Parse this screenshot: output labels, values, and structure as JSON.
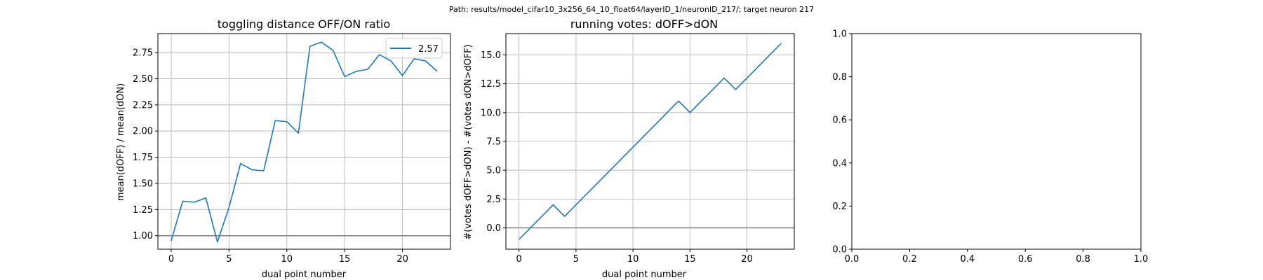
{
  "suptitle": "Path: results/model_cifar10_3x256_64_10_float64/layerID_1/neuronID_217/; target neuron 217",
  "chart_data": [
    {
      "type": "line",
      "title": "toggling distance OFF/ON ratio",
      "xlabel": "dual point number",
      "ylabel": "mean(dOFF) / mean(dON)",
      "xlim": [
        -1.15,
        24.15
      ],
      "ylim": [
        0.871,
        2.931
      ],
      "xticks": [
        0,
        5,
        10,
        15,
        20
      ],
      "yticks": [
        1.0,
        1.25,
        1.5,
        1.75,
        2.0,
        2.25,
        2.5,
        2.75
      ],
      "ytick_labels": [
        "1.00",
        "1.25",
        "1.50",
        "1.75",
        "2.00",
        "2.25",
        "2.50",
        "2.75"
      ],
      "grid": true,
      "hline": 1.0,
      "legend_position": "top-right",
      "series": [
        {
          "name": "2.57",
          "color": "#1f77b4",
          "x": [
            0,
            1,
            2,
            3,
            4,
            5,
            6,
            7,
            8,
            9,
            10,
            11,
            12,
            13,
            14,
            15,
            16,
            17,
            18,
            19,
            20,
            21,
            22,
            23
          ],
          "y": [
            0.95,
            1.33,
            1.32,
            1.36,
            0.94,
            1.27,
            1.69,
            1.63,
            1.62,
            2.1,
            2.09,
            1.98,
            2.81,
            2.85,
            2.77,
            2.52,
            2.57,
            2.59,
            2.73,
            2.67,
            2.53,
            2.69,
            2.67,
            2.57
          ]
        }
      ]
    },
    {
      "type": "line",
      "title": "running votes: dOFF>dON",
      "xlabel": "dual point number",
      "ylabel": "#(votes dOFF>dON) - #(votes dON>dOFF)",
      "xlim": [
        -1.15,
        24.15
      ],
      "ylim": [
        -1.85,
        16.85
      ],
      "xticks": [
        0,
        5,
        10,
        15,
        20
      ],
      "yticks": [
        0.0,
        2.5,
        5.0,
        7.5,
        10.0,
        12.5,
        15.0
      ],
      "ytick_labels": [
        "0.0",
        "2.5",
        "5.0",
        "7.5",
        "10.0",
        "12.5",
        "15.0"
      ],
      "grid": true,
      "hline": 0.0,
      "series": [
        {
          "color": "#1f77b4",
          "x": [
            0,
            1,
            2,
            3,
            4,
            5,
            6,
            7,
            8,
            9,
            10,
            11,
            12,
            13,
            14,
            15,
            16,
            17,
            18,
            19,
            20,
            21,
            22,
            23
          ],
          "y": [
            -1,
            0,
            1,
            2,
            1,
            2,
            3,
            4,
            5,
            6,
            7,
            8,
            9,
            10,
            11,
            10,
            11,
            12,
            13,
            12,
            13,
            14,
            15,
            16
          ]
        }
      ]
    },
    {
      "type": "line",
      "title": "",
      "xlabel": "",
      "ylabel": "",
      "xlim": [
        0,
        1
      ],
      "ylim": [
        0,
        1
      ],
      "xticks": [
        0,
        0.2,
        0.4,
        0.6,
        0.8,
        1.0
      ],
      "yticks": [
        0,
        0.2,
        0.4,
        0.6,
        0.8,
        1.0
      ],
      "xtick_labels": [
        "0.0",
        "0.2",
        "0.4",
        "0.6",
        "0.8",
        "1.0"
      ],
      "ytick_labels": [
        "0.0",
        "0.2",
        "0.4",
        "0.6",
        "0.8",
        "1.0"
      ],
      "grid": false,
      "series": []
    }
  ]
}
